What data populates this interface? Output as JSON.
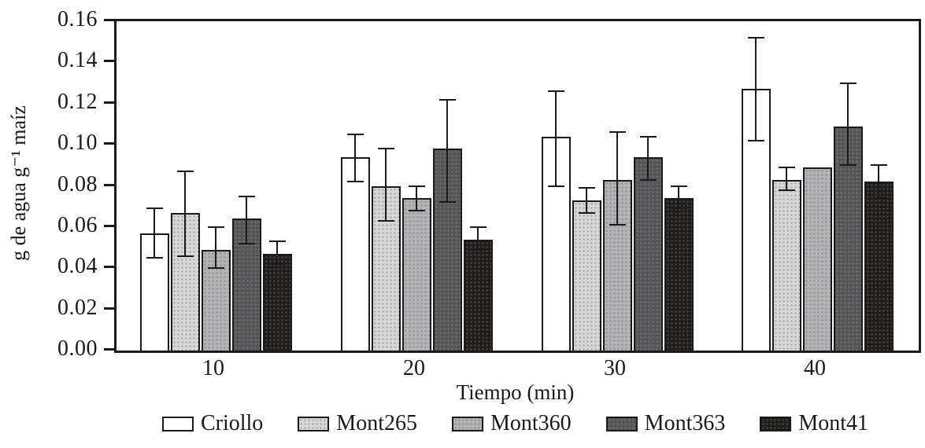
{
  "chart_data": {
    "type": "bar",
    "title": "",
    "xlabel": "Tiempo (min)",
    "ylabel": "g de agua g⁻¹ maíz",
    "categories": [
      "10",
      "20",
      "30",
      "40"
    ],
    "ylim": [
      0,
      0.16
    ],
    "ytick_step": 0.02,
    "ytick_labels": [
      "0.00",
      "0.02",
      "0.04",
      "0.06",
      "0.08",
      "0.10",
      "0.12",
      "0.14",
      "0.16"
    ],
    "grid": false,
    "legend_position": "bottom",
    "error_bars": true,
    "axis_color": "#1a1a1a",
    "series": [
      {
        "name": "Criollo",
        "color": "#ffffff",
        "values": [
          0.057,
          0.094,
          0.104,
          0.127
        ],
        "err_low": [
          0.045,
          0.082,
          0.08,
          0.102
        ],
        "err_high": [
          0.069,
          0.105,
          0.126,
          0.152
        ]
      },
      {
        "name": "Mont265",
        "color": "#d6d7da",
        "values": [
          0.067,
          0.08,
          0.073,
          0.083
        ],
        "err_low": [
          0.046,
          0.063,
          0.067,
          0.078
        ],
        "err_high": [
          0.087,
          0.098,
          0.079,
          0.089
        ]
      },
      {
        "name": "Mont360",
        "color": "#b2b3b8",
        "values": [
          0.049,
          0.074,
          0.083,
          0.089
        ],
        "err_low": [
          0.04,
          0.068,
          0.061,
          null
        ],
        "err_high": [
          0.06,
          0.08,
          0.106,
          null
        ]
      },
      {
        "name": "Mont363",
        "color": "#55565b",
        "values": [
          0.064,
          0.098,
          0.094,
          0.109
        ],
        "err_low": [
          0.052,
          0.072,
          0.083,
          0.09
        ],
        "err_high": [
          0.075,
          0.122,
          0.104,
          0.13
        ]
      },
      {
        "name": "Mont41",
        "color": "#201d1f",
        "values": [
          0.047,
          0.054,
          0.074,
          0.082
        ],
        "err_low": [
          0.042,
          0.049,
          0.069,
          0.074
        ],
        "err_high": [
          0.053,
          0.06,
          0.08,
          0.09
        ]
      }
    ]
  }
}
